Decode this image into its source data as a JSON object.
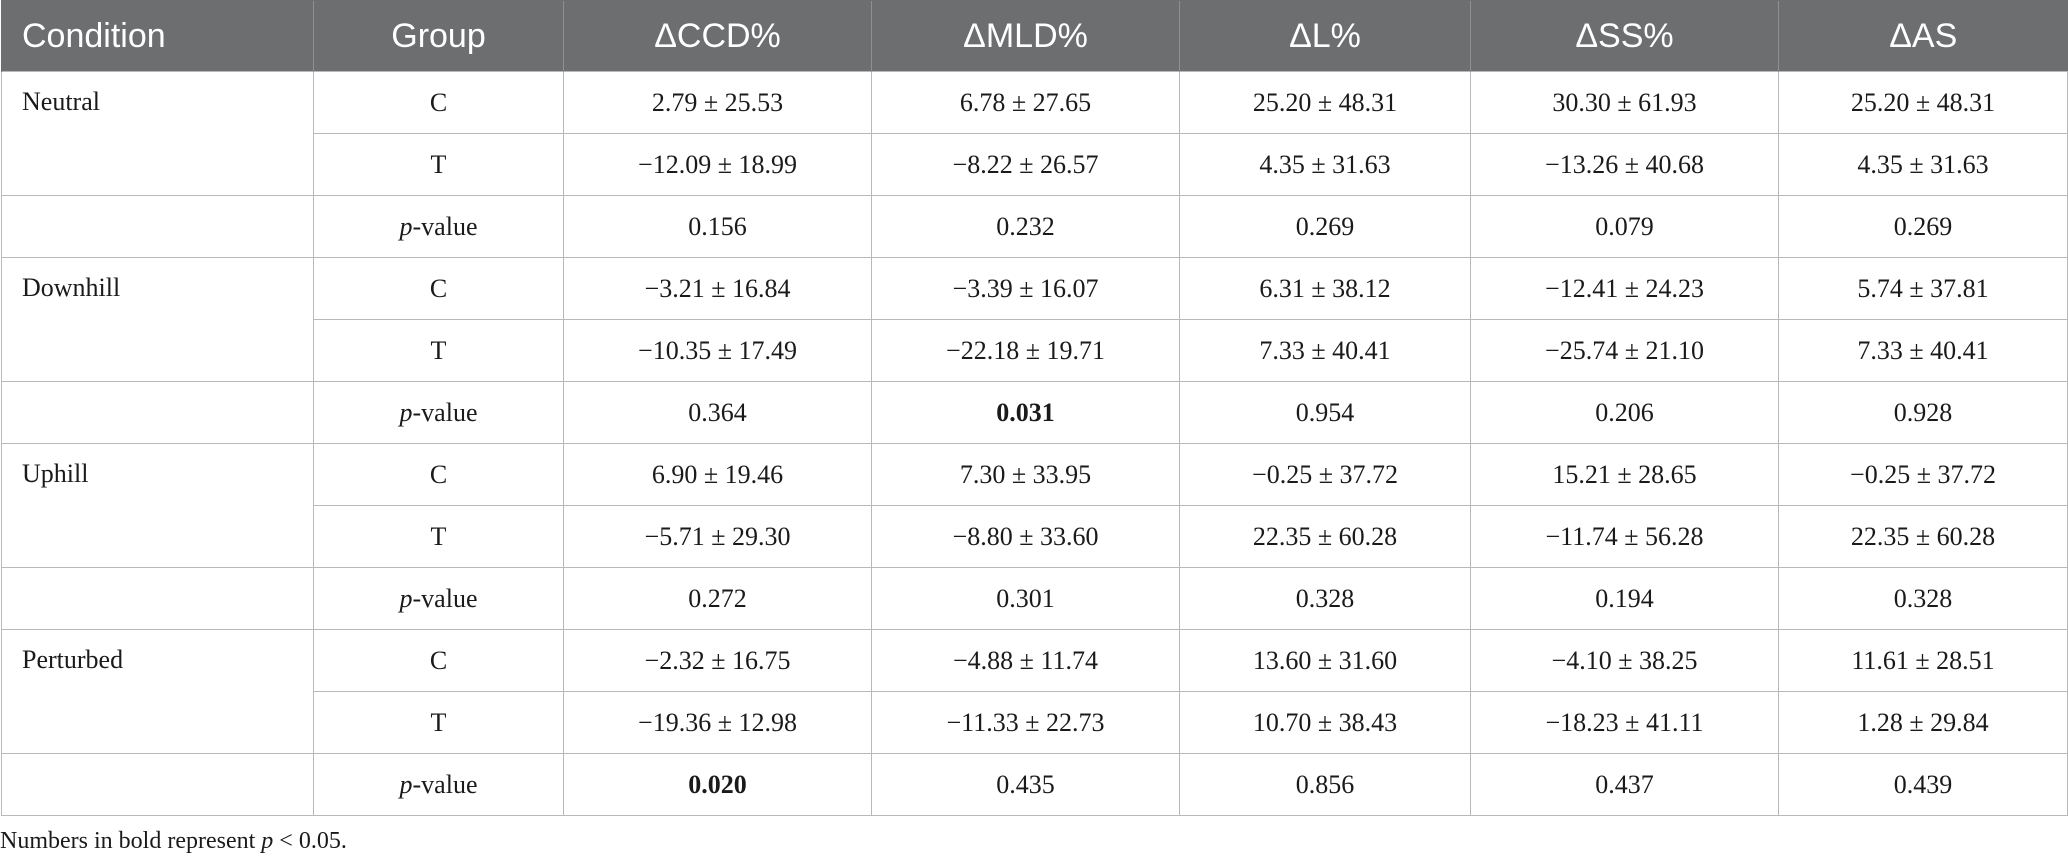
{
  "headers": [
    "Condition",
    "Group",
    "ΔCCD%",
    "ΔMLD%",
    "ΔL%",
    "ΔSS%",
    "ΔAS"
  ],
  "pvalue_italic": "p",
  "pvalue_suffix": "-value",
  "blocks": [
    {
      "condition": "Neutral",
      "C": [
        "C",
        "2.79 ± 25.53",
        "6.78 ± 27.65",
        "25.20 ± 48.31",
        "30.30 ± 61.93",
        "25.20 ± 48.31"
      ],
      "T": [
        "T",
        "−12.09 ± 18.99",
        "−8.22 ± 26.57",
        "4.35 ± 31.63",
        "−13.26 ± 40.68",
        "4.35 ± 31.63"
      ],
      "p": [
        "0.156",
        "0.232",
        "0.269",
        "0.079",
        "0.269"
      ]
    },
    {
      "condition": "Downhill",
      "C": [
        "C",
        "−3.21 ± 16.84",
        "−3.39 ± 16.07",
        "6.31 ± 38.12",
        "−12.41 ± 24.23",
        "5.74 ± 37.81"
      ],
      "T": [
        "T",
        "−10.35 ± 17.49",
        "−22.18 ± 19.71",
        "7.33 ± 40.41",
        "−25.74 ± 21.10",
        "7.33 ± 40.41"
      ],
      "p": [
        "0.364",
        "0.031",
        "0.954",
        "0.206",
        "0.928"
      ]
    },
    {
      "condition": "Uphill",
      "C": [
        "C",
        "6.90 ± 19.46",
        "7.30 ± 33.95",
        "−0.25 ± 37.72",
        "15.21 ± 28.65",
        "−0.25 ± 37.72"
      ],
      "T": [
        "T",
        "−5.71 ± 29.30",
        "−8.80 ± 33.60",
        "22.35 ± 60.28",
        "−11.74 ± 56.28",
        "22.35 ± 60.28"
      ],
      "p": [
        "0.272",
        "0.301",
        "0.328",
        "0.194",
        "0.328"
      ]
    },
    {
      "condition": "Perturbed",
      "C": [
        "C",
        "−2.32 ± 16.75",
        "−4.88 ± 11.74",
        "13.60 ± 31.60",
        "−4.10 ± 38.25",
        "11.61 ± 28.51"
      ],
      "T": [
        "T",
        "−19.36 ± 12.98",
        "−11.33 ± 22.73",
        "10.70 ± 38.43",
        "−18.23 ± 41.11",
        "1.28 ± 29.84"
      ],
      "p": [
        "0.020",
        "0.435",
        "0.856",
        "0.437",
        "0.439"
      ]
    }
  ],
  "footnote": {
    "prefix": "Numbers in bold represent ",
    "italic": "p",
    "suffix": " < 0.05."
  }
}
